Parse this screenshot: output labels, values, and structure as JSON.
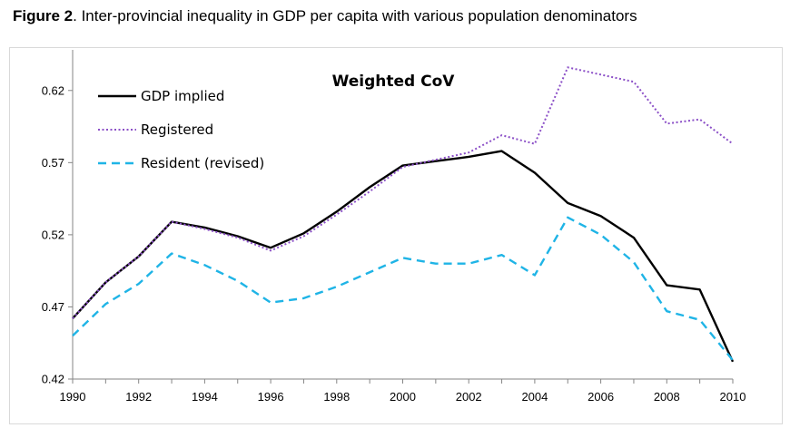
{
  "caption": {
    "label": "Figure 2",
    "text": ". Inter-provincial inequality in GDP per capita with various population denominators"
  },
  "chart_data": {
    "type": "line",
    "title": "Weighted CoV",
    "xlabel": "",
    "ylabel": "",
    "xlim": [
      1990,
      2010
    ],
    "ylim": [
      0.42,
      0.645
    ],
    "x_ticks": [
      1990,
      1992,
      1994,
      1996,
      1998,
      2000,
      2002,
      2004,
      2006,
      2008,
      2010
    ],
    "y_ticks": [
      "0.42",
      "0.47",
      "0.52",
      "0.57",
      "0.62"
    ],
    "grid": false,
    "legend_position": "top-left",
    "x": [
      1990,
      1991,
      1992,
      1993,
      1994,
      1995,
      1996,
      1997,
      1998,
      1999,
      2000,
      2001,
      2002,
      2003,
      2004,
      2005,
      2006,
      2007,
      2008,
      2009,
      2010
    ],
    "series": [
      {
        "name": "GDP implied",
        "style": "solid",
        "color": "#000000",
        "values": [
          0.462,
          0.487,
          0.505,
          0.529,
          0.525,
          0.519,
          0.511,
          0.521,
          0.536,
          0.553,
          0.568,
          0.571,
          0.574,
          0.578,
          0.563,
          0.542,
          0.533,
          0.518,
          0.485,
          0.482,
          0.432
        ]
      },
      {
        "name": "Registered",
        "style": "dotted",
        "color": "#8b4fc7",
        "values": [
          0.462,
          0.487,
          0.505,
          0.529,
          0.524,
          0.518,
          0.509,
          0.519,
          0.534,
          0.55,
          0.567,
          0.572,
          0.577,
          0.589,
          0.583,
          0.636,
          0.631,
          0.626,
          0.597,
          0.6,
          0.583
        ]
      },
      {
        "name": "Resident (revised)",
        "style": "dashed",
        "color": "#1fb4e6",
        "values": [
          0.45,
          0.472,
          0.486,
          0.507,
          0.499,
          0.488,
          0.473,
          0.476,
          0.484,
          0.494,
          0.504,
          0.5,
          0.5,
          0.506,
          0.492,
          0.532,
          0.52,
          0.501,
          0.467,
          0.461,
          0.433
        ]
      }
    ]
  }
}
